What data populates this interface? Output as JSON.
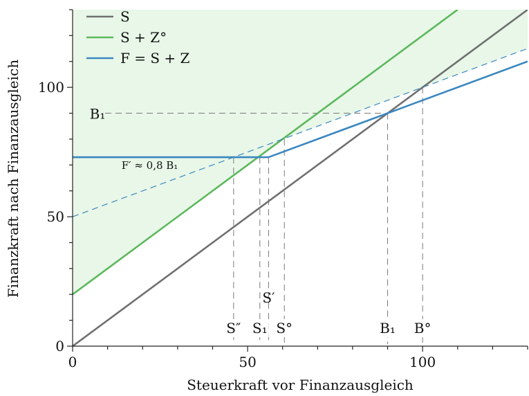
{
  "chart_data": {
    "type": "line",
    "xlabel": "Steuerkraft vor Finanzausgleich",
    "ylabel": "Finanzkraft nach Finanzausgleich",
    "xlim": [
      0,
      130
    ],
    "ylim": [
      0,
      130
    ],
    "x_ticks": [
      0,
      50,
      100
    ],
    "y_ticks": [
      0,
      50,
      100
    ],
    "x_minor_step": 10,
    "y_minor_step": 10,
    "grid": false,
    "legend_position": "top-left",
    "series": [
      {
        "name": "S",
        "color": "#707070",
        "style": "solid",
        "points": [
          [
            0,
            0
          ],
          [
            130,
            130
          ]
        ]
      },
      {
        "name": "S + Z°",
        "color": "#5cb85c",
        "style": "solid",
        "points": [
          [
            0,
            20
          ],
          [
            110,
            130
          ]
        ]
      },
      {
        "name": "F = S + Z",
        "color": "#3b87bf",
        "style": "solid",
        "points": [
          [
            0,
            73
          ],
          [
            56,
            73
          ],
          [
            90,
            90
          ],
          [
            130,
            110
          ]
        ]
      },
      {
        "name": "",
        "color": "#3b87bf",
        "style": "dashed",
        "points": [
          [
            0,
            50
          ],
          [
            130,
            115
          ]
        ]
      }
    ],
    "shaded_region": {
      "color": "#e8f7e8",
      "upper": [
        [
          0,
          130
        ],
        [
          130,
          130
        ],
        [
          130,
          115
        ],
        [
          100,
          100
        ],
        [
          90,
          95
        ],
        [
          60,
          80
        ]
      ],
      "lower": [
        [
          0,
          20
        ],
        [
          60,
          80
        ]
      ]
    },
    "reference_lines": {
      "vertical": [
        {
          "x": 46,
          "label": "S″"
        },
        {
          "x": 53.5,
          "label": "S₁"
        },
        {
          "x": 56,
          "label": "S′"
        },
        {
          "x": 60.5,
          "label": "S°"
        },
        {
          "x": 90,
          "label": "B₁"
        },
        {
          "x": 100,
          "label": "B°"
        }
      ],
      "horizontal": [
        {
          "y": 90,
          "label": "B₁"
        }
      ]
    },
    "annotations": [
      {
        "text": "F′ ≈ 0,8 B₁",
        "x": 12,
        "y": 69
      }
    ]
  }
}
